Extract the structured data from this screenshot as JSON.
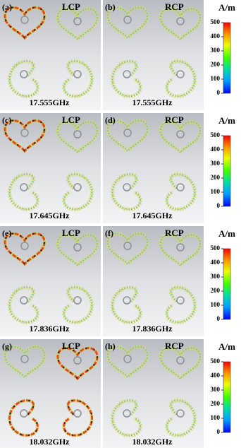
{
  "rows": [
    {
      "panels": [
        {
          "label": "(a)",
          "polarization": "LCP",
          "frequency": "17.555GHz"
        },
        {
          "label": "(b)",
          "polarization": "RCP",
          "frequency": "17.555GHz"
        }
      ],
      "colorbar": {
        "unit": "A/m",
        "range": [
          0,
          500
        ],
        "ticks": [
          0,
          100,
          200,
          300,
          400,
          500
        ]
      }
    },
    {
      "panels": [
        {
          "label": "(c)",
          "polarization": "LCP",
          "frequency": "17.645GHz"
        },
        {
          "label": "(d)",
          "polarization": "RCP",
          "frequency": "17.645GHz"
        }
      ],
      "colorbar": {
        "unit": "A/m",
        "range": [
          0,
          500
        ],
        "ticks": [
          0,
          100,
          200,
          300,
          400,
          500
        ]
      }
    },
    {
      "panels": [
        {
          "label": "(e)",
          "polarization": "LCP",
          "frequency": "17.836GHz"
        },
        {
          "label": "(f)",
          "polarization": "RCP",
          "frequency": "17.836GHz"
        }
      ],
      "colorbar": {
        "unit": "A/m",
        "range": [
          0,
          500
        ],
        "ticks": [
          0,
          100,
          200,
          300,
          400,
          500
        ]
      }
    },
    {
      "panels": [
        {
          "label": "(g)",
          "polarization": "LCP",
          "frequency": "18.032GHz"
        },
        {
          "label": "(h)",
          "polarization": "RCP",
          "frequency": "18.032GHz"
        }
      ],
      "colorbar": {
        "unit": "A/m",
        "range": [
          0,
          500
        ],
        "ticks": [
          0,
          100,
          200,
          300,
          400,
          500
        ]
      }
    }
  ]
}
